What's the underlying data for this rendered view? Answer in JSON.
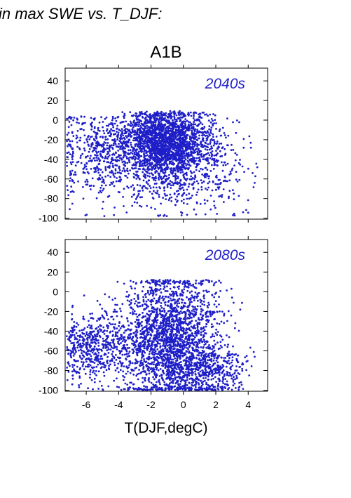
{
  "heading": "in max SWE vs. T_DJF:",
  "scenario": "A1B",
  "colors": {
    "points": "#1f1fc8",
    "label": "#1f1fc8"
  },
  "chart_data": [
    {
      "type": "scatter",
      "period_label": "2040s",
      "xlabel": "T(DJF,degC)",
      "ylabel": "",
      "xlim": [
        -7.3,
        5.2
      ],
      "ylim": [
        -101,
        53
      ],
      "xticks": [
        -6,
        -4,
        -2,
        0,
        2,
        4
      ],
      "yticks": [
        40,
        20,
        0,
        -20,
        -40,
        -60,
        -80,
        -100
      ],
      "grid": false,
      "point_cloud": {
        "approx_points": 9000,
        "x_range": [
          -7.2,
          4.7
        ],
        "y_range": [
          -98,
          11
        ],
        "dense_region": {
          "x": [
            -4.5,
            2.0
          ],
          "y": [
            -60,
            8
          ]
        }
      }
    },
    {
      "type": "scatter",
      "period_label": "2080s",
      "xlabel": "T(DJF,degC)",
      "ylabel": "",
      "xlim": [
        -7.3,
        5.2
      ],
      "ylim": [
        -101,
        53
      ],
      "xticks": [
        -6,
        -4,
        -2,
        0,
        2,
        4
      ],
      "xtick_labels": [
        "-6",
        "-4",
        "-2",
        "0",
        "2",
        "4"
      ],
      "yticks": [
        40,
        20,
        0,
        -20,
        -40,
        -60,
        -80,
        -100
      ],
      "grid": false,
      "point_cloud": {
        "approx_points": 9000,
        "x_range": [
          -7.2,
          4.7
        ],
        "y_range": [
          -100,
          13
        ],
        "dense_region": {
          "x": [
            -4.0,
            2.3
          ],
          "y": [
            -100,
            12
          ]
        }
      }
    }
  ]
}
